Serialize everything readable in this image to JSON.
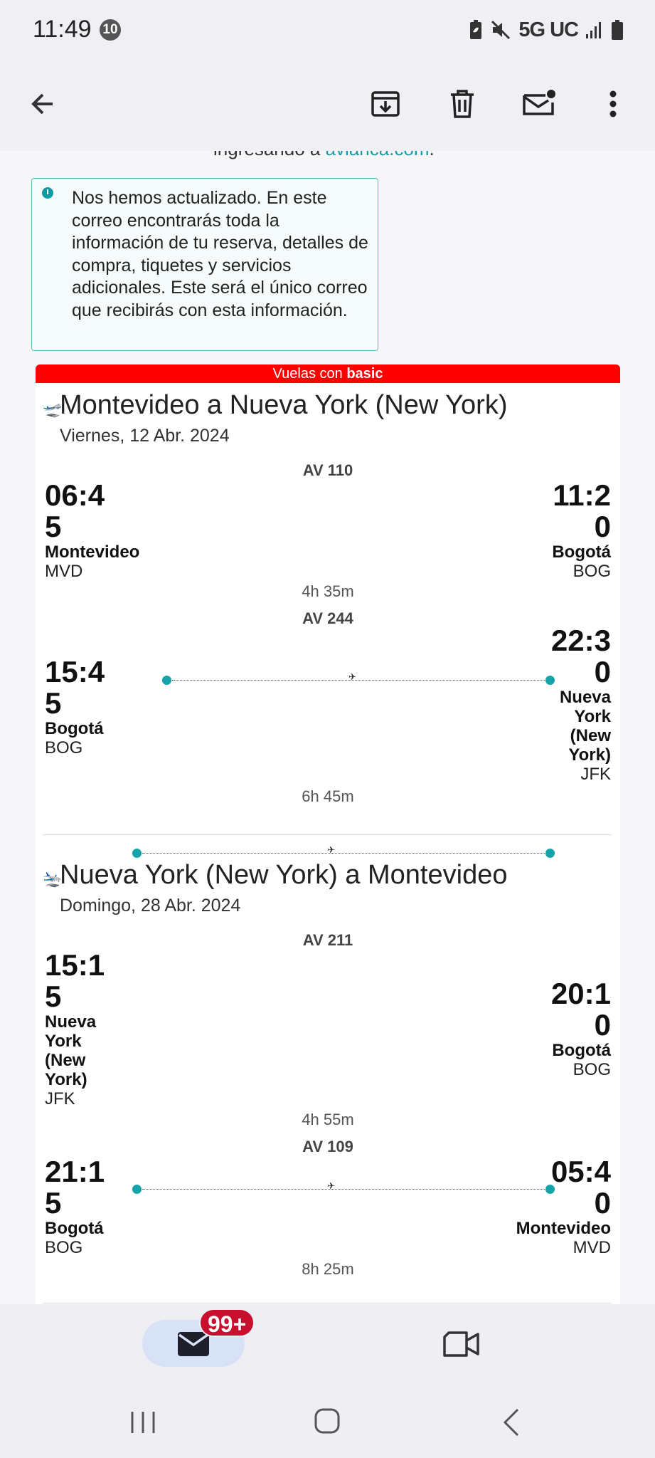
{
  "status_bar": {
    "time": "11:49",
    "notification_count": "10",
    "network": "5G UC"
  },
  "app_bar": {
    "icons": [
      "back-arrow-icon",
      "archive-icon",
      "trash-icon",
      "mark-unread-icon",
      "more-vert-icon"
    ]
  },
  "email": {
    "cut_text_prefix": "ingresando a ",
    "cut_text_link": "avianca.com",
    "cut_text_suffix": ".",
    "notice": "Nos hemos actualizado. En este correo encontrarás toda la información de tu reserva, detalles de compra, tiquetes y servicios adicionales. Este será el único correo que recibirás con esta información.",
    "fare_prefix": "Vuelas con ",
    "fare_name": "basic",
    "journeys": [
      {
        "title": "Montevideo a Nueva York (New York)",
        "date": "Viernes, 12 Abr. 2024",
        "segments": [
          {
            "flight": "AV 110",
            "dep_time_l1": "06:4",
            "dep_time_l2": "5",
            "dep_city": "Montevideo",
            "dep_code": "MVD",
            "arr_time_l1": "11:2",
            "arr_time_l2": "0",
            "arr_city": "Bogotá",
            "arr_code": "BOG",
            "duration": "4h 35m"
          },
          {
            "flight": "AV 244",
            "dep_time_l1": "15:4",
            "dep_time_l2": "5",
            "dep_city": "Bogotá",
            "dep_code": "BOG",
            "arr_time_l1": "22:3",
            "arr_time_l2": "0",
            "arr_city_l1": "Nueva",
            "arr_city_l2": "York",
            "arr_city_l3": "(New",
            "arr_city_l4": "York)",
            "arr_code": "JFK",
            "duration": "6h 45m"
          }
        ]
      },
      {
        "title": "Nueva York (New York) a Montevideo",
        "date": "Domingo, 28 Abr. 2024",
        "segments": [
          {
            "flight": "AV 211",
            "dep_time_l1": "15:1",
            "dep_time_l2": "5",
            "dep_city_l1": "Nueva",
            "dep_city_l2": "York",
            "dep_city_l3": "(New",
            "dep_city_l4": "York)",
            "dep_code": "JFK",
            "arr_time_l1": "20:1",
            "arr_time_l2": "0",
            "arr_city": "Bogotá",
            "arr_code": "BOG",
            "duration": "4h 55m"
          },
          {
            "flight": "AV 109",
            "dep_time_l1": "21:1",
            "dep_time_l2": "5",
            "dep_city": "Bogotá",
            "dep_code": "BOG",
            "arr_time_l1": "05:4",
            "arr_time_l2": "0",
            "arr_city": "Montevideo",
            "arr_code": "MVD",
            "duration": "8h 25m"
          }
        ]
      }
    ]
  },
  "bottom_nav": {
    "mail_badge": "99+",
    "items": [
      "mail-icon",
      "video-icon"
    ]
  },
  "system_nav": [
    "recents-icon",
    "home-icon",
    "back-icon"
  ],
  "colors": {
    "accent_teal": "#14a3a8",
    "fare_red": "#ff0000",
    "badge_red": "#c8102e"
  }
}
